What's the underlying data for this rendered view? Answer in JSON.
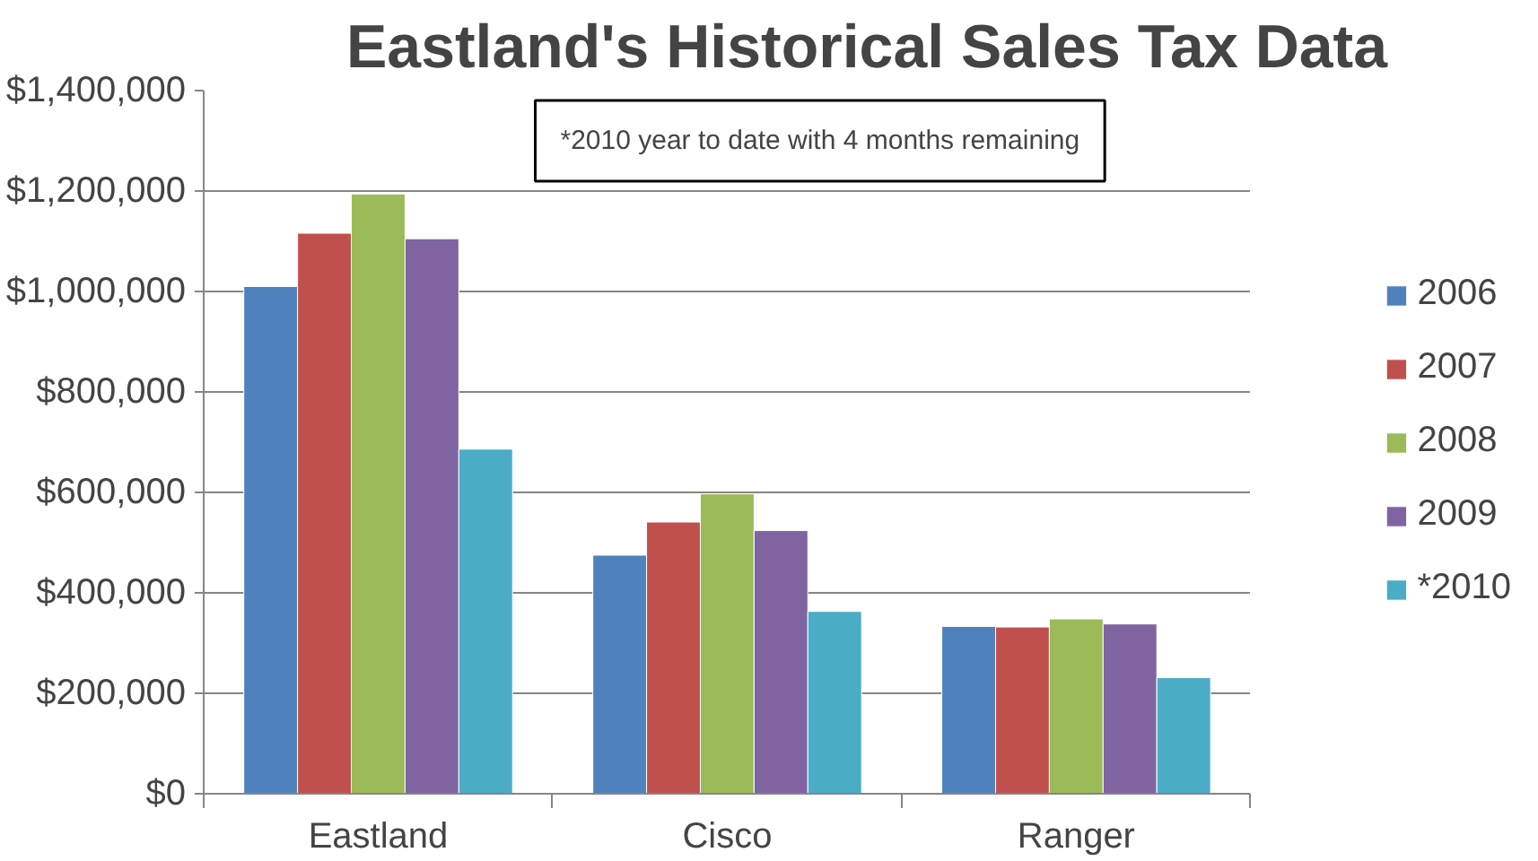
{
  "chart_data": {
    "type": "bar",
    "title": "Eastland's Historical Sales Tax Data",
    "categories": [
      "Eastland",
      "Cisco",
      "Ranger"
    ],
    "series": [
      {
        "name": "2006",
        "color": "#4f81bd",
        "values": [
          1010000,
          475000,
          333000
        ]
      },
      {
        "name": "2007",
        "color": "#c0504d",
        "values": [
          1116000,
          541000,
          332000
        ]
      },
      {
        "name": "2008",
        "color": "#9bbb59",
        "values": [
          1194000,
          597000,
          348000
        ]
      },
      {
        "name": "2009",
        "color": "#8064a2",
        "values": [
          1105000,
          524000,
          338000
        ]
      },
      {
        "name": "*2010",
        "color": "#4bacc6",
        "values": [
          686000,
          363000,
          231000
        ]
      }
    ],
    "ylim": [
      0,
      1400000
    ],
    "yticks": [
      {
        "value": 0,
        "label": "$0"
      },
      {
        "value": 200000,
        "label": "$200,000"
      },
      {
        "value": 400000,
        "label": "$400,000"
      },
      {
        "value": 600000,
        "label": "$600,000"
      },
      {
        "value": 800000,
        "label": "$800,000"
      },
      {
        "value": 1000000,
        "label": "$1,000,000"
      },
      {
        "value": 1200000,
        "label": "$1,200,000"
      },
      {
        "value": 1400000,
        "label": "$1,400,000"
      }
    ],
    "grid": "y",
    "legend": "right",
    "annotations": [
      "*2010 year to date with 4 months remaining"
    ]
  }
}
